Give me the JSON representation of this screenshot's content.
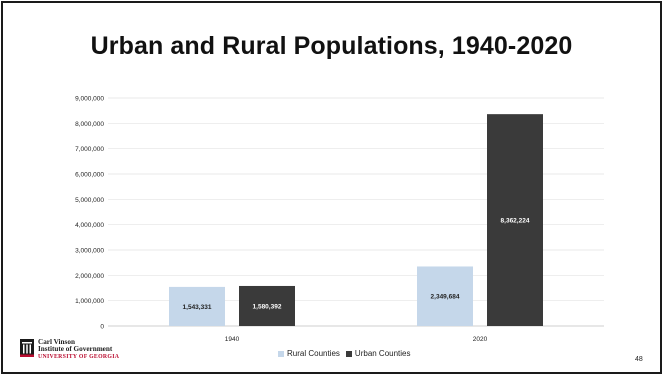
{
  "slide": {
    "title": "Urban and Rural Populations, 1940-2020",
    "page_number": "48",
    "logo": {
      "line1": "Carl Vinson",
      "line2": "Institute of Government",
      "line3": "UNIVERSITY OF GEORGIA"
    }
  },
  "chart_data": {
    "type": "bar",
    "title": "Urban and Rural Populations, 1940-2020",
    "categories": [
      "1940",
      "2020"
    ],
    "series": [
      {
        "name": "Rural Counties",
        "values": [
          1543331,
          2349684
        ],
        "labels": [
          "1,543,331",
          "2,349,684"
        ],
        "color": "#c5d7ea",
        "label_color": "#222222"
      },
      {
        "name": "Urban Counties",
        "values": [
          1580392,
          8362224
        ],
        "labels": [
          "1,580,392",
          "8,362,224"
        ],
        "color": "#3a3a3a",
        "label_color": "#ffffff"
      }
    ],
    "ylim": [
      0,
      9000000
    ],
    "yticks": [
      {
        "value": 0,
        "label": "0"
      },
      {
        "value": 1000000,
        "label": "1,000,000"
      },
      {
        "value": 2000000,
        "label": "2,000,000"
      },
      {
        "value": 3000000,
        "label": "3,000,000"
      },
      {
        "value": 4000000,
        "label": "4,000,000"
      },
      {
        "value": 5000000,
        "label": "5,000,000"
      },
      {
        "value": 6000000,
        "label": "6,000,000"
      },
      {
        "value": 7000000,
        "label": "7,000,000"
      },
      {
        "value": 8000000,
        "label": "8,000,000"
      },
      {
        "value": 9000000,
        "label": "9,000,000"
      }
    ],
    "grid": true,
    "legend": "bottom"
  }
}
